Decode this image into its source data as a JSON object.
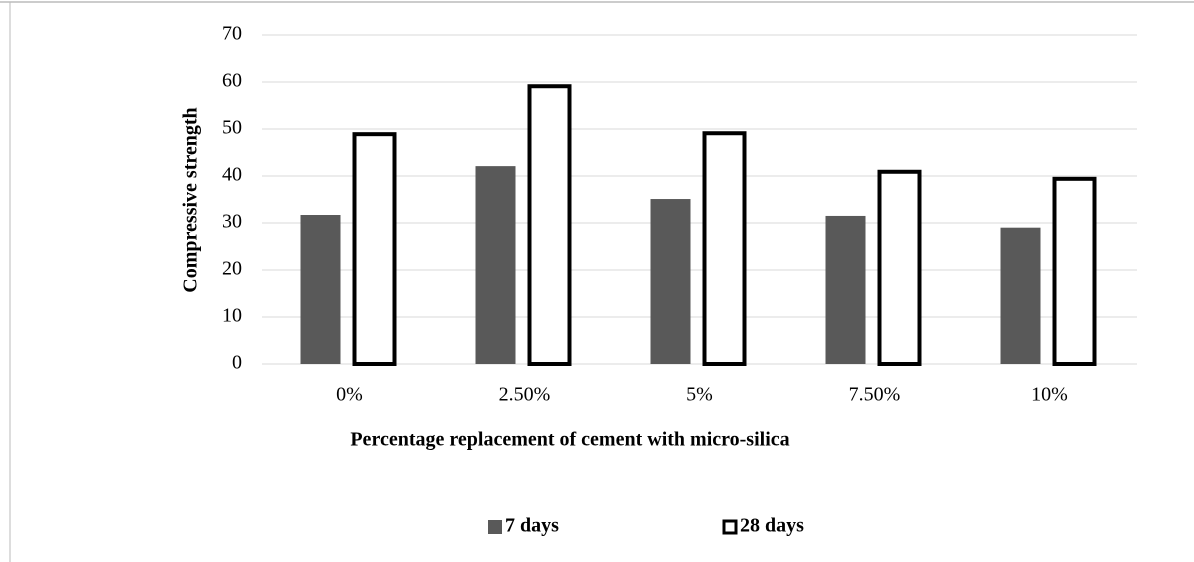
{
  "chart_data": {
    "type": "bar",
    "xlabel": "Percentage replacement of cement with micro-silica",
    "ylabel": "Compressive strength",
    "categories": [
      "0%",
      "2.50%",
      "5%",
      "7.50%",
      "10%"
    ],
    "series": [
      {
        "name": "7 days",
        "color": "#595959",
        "values": [
          31.7,
          42.1,
          35.1,
          31.5,
          29
        ]
      },
      {
        "name": "28 days",
        "color": "#ffffff",
        "values": [
          48.9,
          59.1,
          49.1,
          40.9,
          39.4
        ]
      }
    ],
    "ylim": [
      0,
      70
    ],
    "yticks": [
      0,
      10,
      20,
      30,
      40,
      50,
      60,
      70
    ],
    "grid": true,
    "legend": "bottom"
  }
}
